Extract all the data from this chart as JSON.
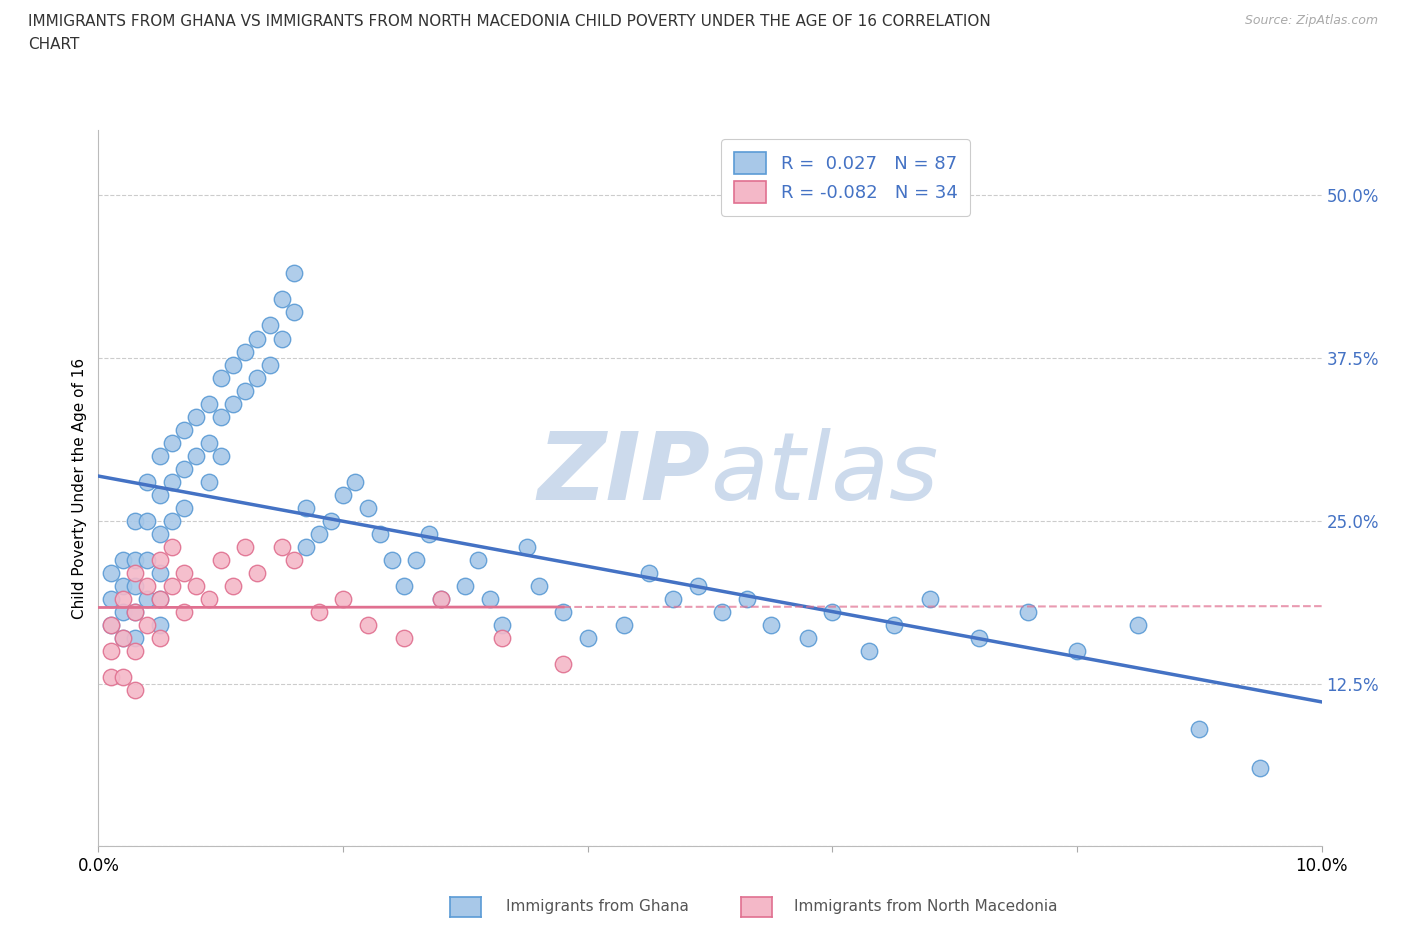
{
  "title_line1": "IMMIGRANTS FROM GHANA VS IMMIGRANTS FROM NORTH MACEDONIA CHILD POVERTY UNDER THE AGE OF 16 CORRELATION",
  "title_line2": "CHART",
  "source_text": "Source: ZipAtlas.com",
  "ylabel": "Child Poverty Under the Age of 16",
  "xlim": [
    0.0,
    0.1
  ],
  "ylim": [
    0.0,
    0.55
  ],
  "ghana_color": "#a8c8e8",
  "ghana_edge_color": "#5b9bd5",
  "macedonia_color": "#f4b8c8",
  "macedonia_edge_color": "#e07090",
  "ghana_line_color": "#4472c4",
  "macedonia_line_color": "#e07090",
  "background_color": "#ffffff",
  "watermark_color": "#ccdaec",
  "R_ghana": 0.027,
  "N_ghana": 87,
  "R_macedonia": -0.082,
  "N_macedonia": 34,
  "ghana_x": [
    0.001,
    0.001,
    0.001,
    0.002,
    0.002,
    0.002,
    0.002,
    0.003,
    0.003,
    0.003,
    0.003,
    0.003,
    0.004,
    0.004,
    0.004,
    0.004,
    0.005,
    0.005,
    0.005,
    0.005,
    0.005,
    0.005,
    0.006,
    0.006,
    0.006,
    0.007,
    0.007,
    0.007,
    0.008,
    0.008,
    0.009,
    0.009,
    0.009,
    0.01,
    0.01,
    0.01,
    0.011,
    0.011,
    0.012,
    0.012,
    0.013,
    0.013,
    0.014,
    0.014,
    0.015,
    0.015,
    0.016,
    0.016,
    0.017,
    0.017,
    0.018,
    0.019,
    0.02,
    0.021,
    0.022,
    0.023,
    0.024,
    0.025,
    0.026,
    0.027,
    0.028,
    0.03,
    0.031,
    0.032,
    0.033,
    0.035,
    0.036,
    0.038,
    0.04,
    0.043,
    0.045,
    0.047,
    0.049,
    0.051,
    0.053,
    0.055,
    0.058,
    0.06,
    0.063,
    0.065,
    0.068,
    0.072,
    0.076,
    0.08,
    0.085,
    0.09,
    0.095
  ],
  "ghana_y": [
    0.21,
    0.19,
    0.17,
    0.22,
    0.2,
    0.18,
    0.16,
    0.25,
    0.22,
    0.2,
    0.18,
    0.16,
    0.28,
    0.25,
    0.22,
    0.19,
    0.3,
    0.27,
    0.24,
    0.21,
    0.19,
    0.17,
    0.31,
    0.28,
    0.25,
    0.32,
    0.29,
    0.26,
    0.33,
    0.3,
    0.34,
    0.31,
    0.28,
    0.36,
    0.33,
    0.3,
    0.37,
    0.34,
    0.38,
    0.35,
    0.39,
    0.36,
    0.4,
    0.37,
    0.42,
    0.39,
    0.44,
    0.41,
    0.26,
    0.23,
    0.24,
    0.25,
    0.27,
    0.28,
    0.26,
    0.24,
    0.22,
    0.2,
    0.22,
    0.24,
    0.19,
    0.2,
    0.22,
    0.19,
    0.17,
    0.23,
    0.2,
    0.18,
    0.16,
    0.17,
    0.21,
    0.19,
    0.2,
    0.18,
    0.19,
    0.17,
    0.16,
    0.18,
    0.15,
    0.17,
    0.19,
    0.16,
    0.18,
    0.15,
    0.17,
    0.09,
    0.06
  ],
  "mac_x": [
    0.001,
    0.001,
    0.001,
    0.002,
    0.002,
    0.002,
    0.003,
    0.003,
    0.003,
    0.003,
    0.004,
    0.004,
    0.005,
    0.005,
    0.005,
    0.006,
    0.006,
    0.007,
    0.007,
    0.008,
    0.009,
    0.01,
    0.011,
    0.012,
    0.013,
    0.015,
    0.016,
    0.018,
    0.02,
    0.022,
    0.025,
    0.028,
    0.033,
    0.038
  ],
  "mac_y": [
    0.17,
    0.15,
    0.13,
    0.19,
    0.16,
    0.13,
    0.21,
    0.18,
    0.15,
    0.12,
    0.2,
    0.17,
    0.22,
    0.19,
    0.16,
    0.23,
    0.2,
    0.21,
    0.18,
    0.2,
    0.19,
    0.22,
    0.2,
    0.23,
    0.21,
    0.23,
    0.22,
    0.18,
    0.19,
    0.17,
    0.16,
    0.19,
    0.16,
    0.14
  ]
}
